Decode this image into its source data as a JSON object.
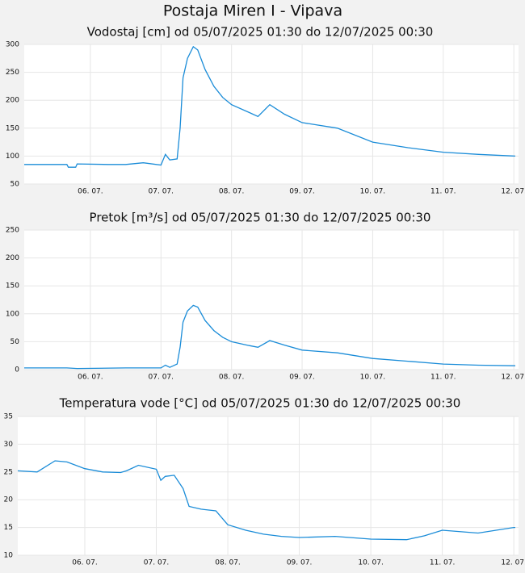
{
  "title": "Postaja Miren I - Vipava",
  "chart_data": [
    {
      "type": "line",
      "title": "Vodostaj [cm] od 05/07/2025 01:30 do 12/07/2025 00:30",
      "color": "#1a8cd8",
      "grid": true,
      "xlim": [
        "05/07/2025 01:30",
        "12/07/2025 00:30"
      ],
      "ylim": [
        50,
        300
      ],
      "yticks": [
        50,
        100,
        150,
        200,
        250,
        300
      ],
      "xticks": [
        {
          "value": "06/07/2025 00:00",
          "label": "06. 07."
        },
        {
          "value": "07/07/2025 00:00",
          "label": "07. 07."
        },
        {
          "value": "08/07/2025 00:00",
          "label": "08. 07."
        },
        {
          "value": "09/07/2025 00:00",
          "label": "09. 07."
        },
        {
          "value": "10/07/2025 00:00",
          "label": "10. 07."
        },
        {
          "value": "11/07/2025 00:00",
          "label": "11. 07."
        },
        {
          "value": "12/07/2025 00:00",
          "label": "12. 07."
        }
      ],
      "x": [
        "05/07/2025 01:30",
        "05/07/2025 12:00",
        "05/07/2025 16:00",
        "05/07/2025 16:30",
        "05/07/2025 19:00",
        "05/07/2025 19:30",
        "06/07/2025 06:00",
        "06/07/2025 12:00",
        "06/07/2025 18:00",
        "07/07/2025 00:00",
        "07/07/2025 01:30",
        "07/07/2025 03:00",
        "07/07/2025 05:30",
        "07/07/2025 06:30",
        "07/07/2025 07:30",
        "07/07/2025 09:00",
        "07/07/2025 11:00",
        "07/07/2025 12:30",
        "07/07/2025 15:00",
        "07/07/2025 18:00",
        "07/07/2025 21:00",
        "08/07/2025 00:00",
        "08/07/2025 06:00",
        "08/07/2025 09:00",
        "08/07/2025 13:00",
        "08/07/2025 18:00",
        "09/07/2025 00:00",
        "09/07/2025 12:00",
        "10/07/2025 00:00",
        "10/07/2025 12:00",
        "11/07/2025 00:00",
        "11/07/2025 12:00",
        "12/07/2025 00:30"
      ],
      "values": [
        85,
        85,
        85,
        80,
        80,
        86,
        85,
        85,
        88,
        84,
        103,
        93,
        95,
        150,
        240,
        275,
        296,
        290,
        255,
        225,
        205,
        192,
        178,
        171,
        192,
        175,
        160,
        150,
        125,
        115,
        107,
        103,
        100
      ]
    },
    {
      "type": "line",
      "title": "Pretok [m³/s] od 05/07/2025 01:30 do 12/07/2025 00:30",
      "color": "#1a8cd8",
      "grid": true,
      "xlim": [
        "05/07/2025 01:30",
        "12/07/2025 00:30"
      ],
      "ylim": [
        0,
        250
      ],
      "yticks": [
        0,
        50,
        100,
        150,
        200,
        250
      ],
      "xticks": [
        {
          "value": "06/07/2025 00:00",
          "label": "06. 07."
        },
        {
          "value": "07/07/2025 00:00",
          "label": "07. 07."
        },
        {
          "value": "08/07/2025 00:00",
          "label": "08. 07."
        },
        {
          "value": "09/07/2025 00:00",
          "label": "09. 07."
        },
        {
          "value": "10/07/2025 00:00",
          "label": "10. 07."
        },
        {
          "value": "11/07/2025 00:00",
          "label": "11. 07."
        },
        {
          "value": "12/07/2025 00:00",
          "label": "12. 07."
        }
      ],
      "x": [
        "05/07/2025 01:30",
        "05/07/2025 16:00",
        "05/07/2025 19:30",
        "06/07/2025 12:00",
        "07/07/2025 00:00",
        "07/07/2025 01:30",
        "07/07/2025 03:00",
        "07/07/2025 05:30",
        "07/07/2025 06:30",
        "07/07/2025 07:30",
        "07/07/2025 09:00",
        "07/07/2025 11:00",
        "07/07/2025 12:30",
        "07/07/2025 15:00",
        "07/07/2025 18:00",
        "07/07/2025 21:00",
        "08/07/2025 00:00",
        "08/07/2025 06:00",
        "08/07/2025 09:00",
        "08/07/2025 13:00",
        "08/07/2025 18:00",
        "09/07/2025 00:00",
        "09/07/2025 12:00",
        "10/07/2025 00:00",
        "10/07/2025 12:00",
        "11/07/2025 00:00",
        "11/07/2025 12:00",
        "12/07/2025 00:30"
      ],
      "values": [
        3,
        3,
        2,
        3,
        3,
        8,
        4,
        10,
        40,
        85,
        105,
        115,
        112,
        88,
        70,
        58,
        50,
        43,
        40,
        52,
        44,
        35,
        30,
        20,
        15,
        10,
        8,
        7
      ]
    },
    {
      "type": "line",
      "title": "Temperatura vode [°C] od 05/07/2025 01:30 do 12/07/2025 00:30",
      "color": "#1a8cd8",
      "grid": true,
      "xlim": [
        "05/07/2025 01:30",
        "12/07/2025 00:30"
      ],
      "ylim": [
        10,
        35
      ],
      "yticks": [
        10,
        15,
        20,
        25,
        30,
        35
      ],
      "xticks": [
        {
          "value": "06/07/2025 00:00",
          "label": "06. 07."
        },
        {
          "value": "07/07/2025 00:00",
          "label": "07. 07."
        },
        {
          "value": "08/07/2025 00:00",
          "label": "08. 07."
        },
        {
          "value": "09/07/2025 00:00",
          "label": "09. 07."
        },
        {
          "value": "10/07/2025 00:00",
          "label": "10. 07."
        },
        {
          "value": "11/07/2025 00:00",
          "label": "11. 07."
        },
        {
          "value": "12/07/2025 00:00",
          "label": "12. 07."
        }
      ],
      "x": [
        "05/07/2025 01:30",
        "05/07/2025 08:00",
        "05/07/2025 14:00",
        "05/07/2025 18:00",
        "06/07/2025 00:00",
        "06/07/2025 06:00",
        "06/07/2025 12:00",
        "06/07/2025 14:00",
        "06/07/2025 18:00",
        "07/07/2025 00:00",
        "07/07/2025 01:30",
        "07/07/2025 03:00",
        "07/07/2025 06:00",
        "07/07/2025 09:00",
        "07/07/2025 11:00",
        "07/07/2025 15:00",
        "07/07/2025 20:00",
        "08/07/2025 00:00",
        "08/07/2025 06:00",
        "08/07/2025 12:00",
        "08/07/2025 18:00",
        "09/07/2025 00:00",
        "09/07/2025 12:00",
        "10/07/2025 00:00",
        "10/07/2025 12:00",
        "10/07/2025 18:00",
        "11/07/2025 00:00",
        "11/07/2025 12:00",
        "12/07/2025 00:00",
        "12/07/2025 00:30"
      ],
      "values": [
        25.2,
        25.0,
        27.0,
        26.8,
        25.6,
        25.0,
        24.9,
        25.2,
        26.2,
        25.5,
        23.5,
        24.2,
        24.4,
        22.0,
        18.8,
        18.3,
        18.0,
        15.5,
        14.5,
        13.8,
        13.4,
        13.2,
        13.4,
        12.9,
        12.8,
        13.5,
        14.5,
        14.0,
        15.0,
        15.0
      ]
    }
  ]
}
